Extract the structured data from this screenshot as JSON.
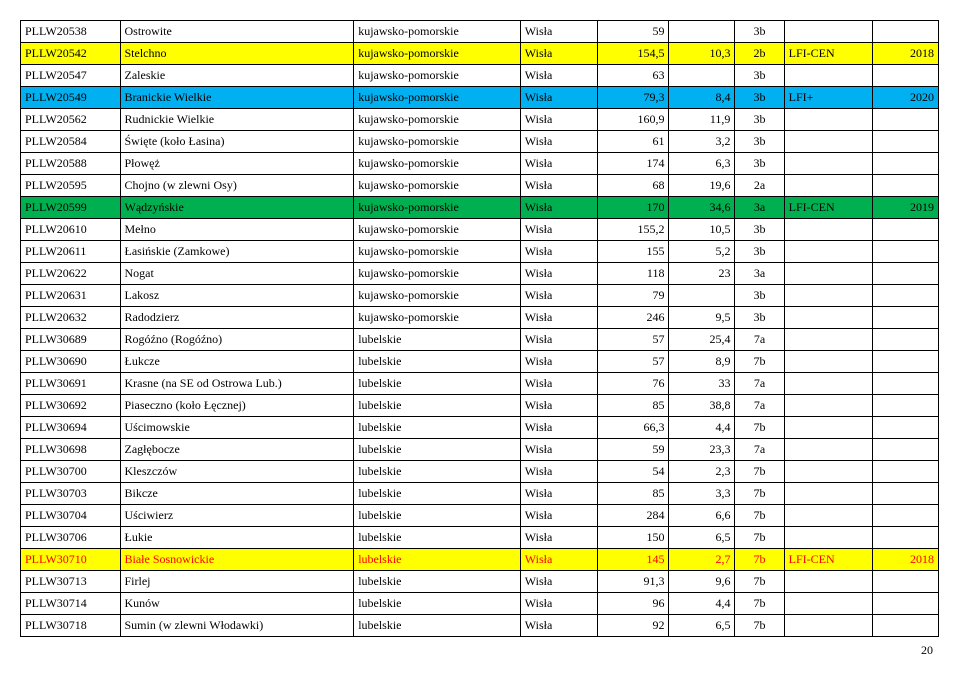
{
  "page_number": "20",
  "colors": {
    "yellow": "#ffff00",
    "blue": "#00b0f0",
    "green": "#00b050",
    "red_text": "#ff0000"
  },
  "rows": [
    {
      "bg": "none",
      "red": false,
      "c": [
        "PLLW20538",
        "Ostrowite",
        "kujawsko-pomorskie",
        "Wisła",
        "59",
        "",
        "3b",
        "",
        ""
      ]
    },
    {
      "bg": "yellow",
      "red": false,
      "c": [
        "PLLW20542",
        "Stelchno",
        "kujawsko-pomorskie",
        "Wisła",
        "154,5",
        "10,3",
        "2b",
        "LFI-CEN",
        "2018"
      ]
    },
    {
      "bg": "none",
      "red": false,
      "c": [
        "PLLW20547",
        "Zaleskie",
        "kujawsko-pomorskie",
        "Wisła",
        "63",
        "",
        "3b",
        "",
        ""
      ]
    },
    {
      "bg": "blue",
      "red": false,
      "c": [
        "PLLW20549",
        "Branickie Wielkie",
        "kujawsko-pomorskie",
        "Wisła",
        "79,3",
        "8,4",
        "3b",
        "LFI+",
        "2020"
      ]
    },
    {
      "bg": "none",
      "red": false,
      "c": [
        "PLLW20562",
        "Rudnickie Wielkie",
        "kujawsko-pomorskie",
        "Wisła",
        "160,9",
        "11,9",
        "3b",
        "",
        ""
      ]
    },
    {
      "bg": "none",
      "red": false,
      "c": [
        "PLLW20584",
        "Święte (koło Łasina)",
        "kujawsko-pomorskie",
        "Wisła",
        "61",
        "3,2",
        "3b",
        "",
        ""
      ]
    },
    {
      "bg": "none",
      "red": false,
      "c": [
        "PLLW20588",
        "Płowęż",
        "kujawsko-pomorskie",
        "Wisła",
        "174",
        "6,3",
        "3b",
        "",
        ""
      ]
    },
    {
      "bg": "none",
      "red": false,
      "c": [
        "PLLW20595",
        "Chojno (w zlewni Osy)",
        "kujawsko-pomorskie",
        "Wisła",
        "68",
        "19,6",
        "2a",
        "",
        ""
      ]
    },
    {
      "bg": "green",
      "red": false,
      "c": [
        "PLLW20599",
        "Wądzyńskie",
        "kujawsko-pomorskie",
        "Wisła",
        "170",
        "34,6",
        "3a",
        "LFI-CEN",
        "2019"
      ]
    },
    {
      "bg": "none",
      "red": false,
      "c": [
        "PLLW20610",
        "Mełno",
        "kujawsko-pomorskie",
        "Wisła",
        "155,2",
        "10,5",
        "3b",
        "",
        ""
      ]
    },
    {
      "bg": "none",
      "red": false,
      "c": [
        "PLLW20611",
        "Łasińskie (Zamkowe)",
        "kujawsko-pomorskie",
        "Wisła",
        "155",
        "5,2",
        "3b",
        "",
        ""
      ]
    },
    {
      "bg": "none",
      "red": false,
      "c": [
        "PLLW20622",
        "Nogat",
        "kujawsko-pomorskie",
        "Wisła",
        "118",
        "23",
        "3a",
        "",
        ""
      ]
    },
    {
      "bg": "none",
      "red": false,
      "c": [
        "PLLW20631",
        "Lakosz",
        "kujawsko-pomorskie",
        "Wisła",
        "79",
        "",
        "3b",
        "",
        ""
      ]
    },
    {
      "bg": "none",
      "red": false,
      "c": [
        "PLLW20632",
        "Radodzierz",
        "kujawsko-pomorskie",
        "Wisła",
        "246",
        "9,5",
        "3b",
        "",
        ""
      ]
    },
    {
      "bg": "none",
      "red": false,
      "c": [
        "PLLW30689",
        "Rogóźno (Rogóźno)",
        "lubelskie",
        "Wisła",
        "57",
        "25,4",
        "7a",
        "",
        ""
      ]
    },
    {
      "bg": "none",
      "red": false,
      "c": [
        "PLLW30690",
        "Łukcze",
        "lubelskie",
        "Wisła",
        "57",
        "8,9",
        "7b",
        "",
        ""
      ]
    },
    {
      "bg": "none",
      "red": false,
      "c": [
        "PLLW30691",
        "Krasne (na SE od Ostrowa Lub.)",
        "lubelskie",
        "Wisła",
        "76",
        "33",
        "7a",
        "",
        ""
      ]
    },
    {
      "bg": "none",
      "red": false,
      "c": [
        "PLLW30692",
        "Piaseczno (koło Łęcznej)",
        "lubelskie",
        "Wisła",
        "85",
        "38,8",
        "7a",
        "",
        ""
      ]
    },
    {
      "bg": "none",
      "red": false,
      "c": [
        "PLLW30694",
        "Uścimowskie",
        "lubelskie",
        "Wisła",
        "66,3",
        "4,4",
        "7b",
        "",
        ""
      ]
    },
    {
      "bg": "none",
      "red": false,
      "c": [
        "PLLW30698",
        "Zagłębocze",
        "lubelskie",
        "Wisła",
        "59",
        "23,3",
        "7a",
        "",
        ""
      ]
    },
    {
      "bg": "none",
      "red": false,
      "c": [
        "PLLW30700",
        "Kleszczów",
        "lubelskie",
        "Wisła",
        "54",
        "2,3",
        "7b",
        "",
        ""
      ]
    },
    {
      "bg": "none",
      "red": false,
      "c": [
        "PLLW30703",
        "Bikcze",
        "lubelskie",
        "Wisła",
        "85",
        "3,3",
        "7b",
        "",
        ""
      ]
    },
    {
      "bg": "none",
      "red": false,
      "c": [
        "PLLW30704",
        "Uściwierz",
        "lubelskie",
        "Wisła",
        "284",
        "6,6",
        "7b",
        "",
        ""
      ]
    },
    {
      "bg": "none",
      "red": false,
      "c": [
        "PLLW30706",
        "Łukie",
        "lubelskie",
        "Wisła",
        "150",
        "6,5",
        "7b",
        "",
        ""
      ]
    },
    {
      "bg": "yellow",
      "red": true,
      "c": [
        "PLLW30710",
        "Białe Sosnowickie",
        "lubelskie",
        "Wisła",
        "145",
        "2,7",
        "7b",
        "LFI-CEN",
        "2018"
      ]
    },
    {
      "bg": "none",
      "red": false,
      "c": [
        "PLLW30713",
        "Firlej",
        "lubelskie",
        "Wisła",
        "91,3",
        "9,6",
        "7b",
        "",
        ""
      ]
    },
    {
      "bg": "none",
      "red": false,
      "c": [
        "PLLW30714",
        "Kunów",
        "lubelskie",
        "Wisła",
        "96",
        "4,4",
        "7b",
        "",
        ""
      ]
    },
    {
      "bg": "none",
      "red": false,
      "c": [
        "PLLW30718",
        "Sumin (w zlewni Włodawki)",
        "lubelskie",
        "Wisła",
        "92",
        "6,5",
        "7b",
        "",
        ""
      ]
    }
  ]
}
